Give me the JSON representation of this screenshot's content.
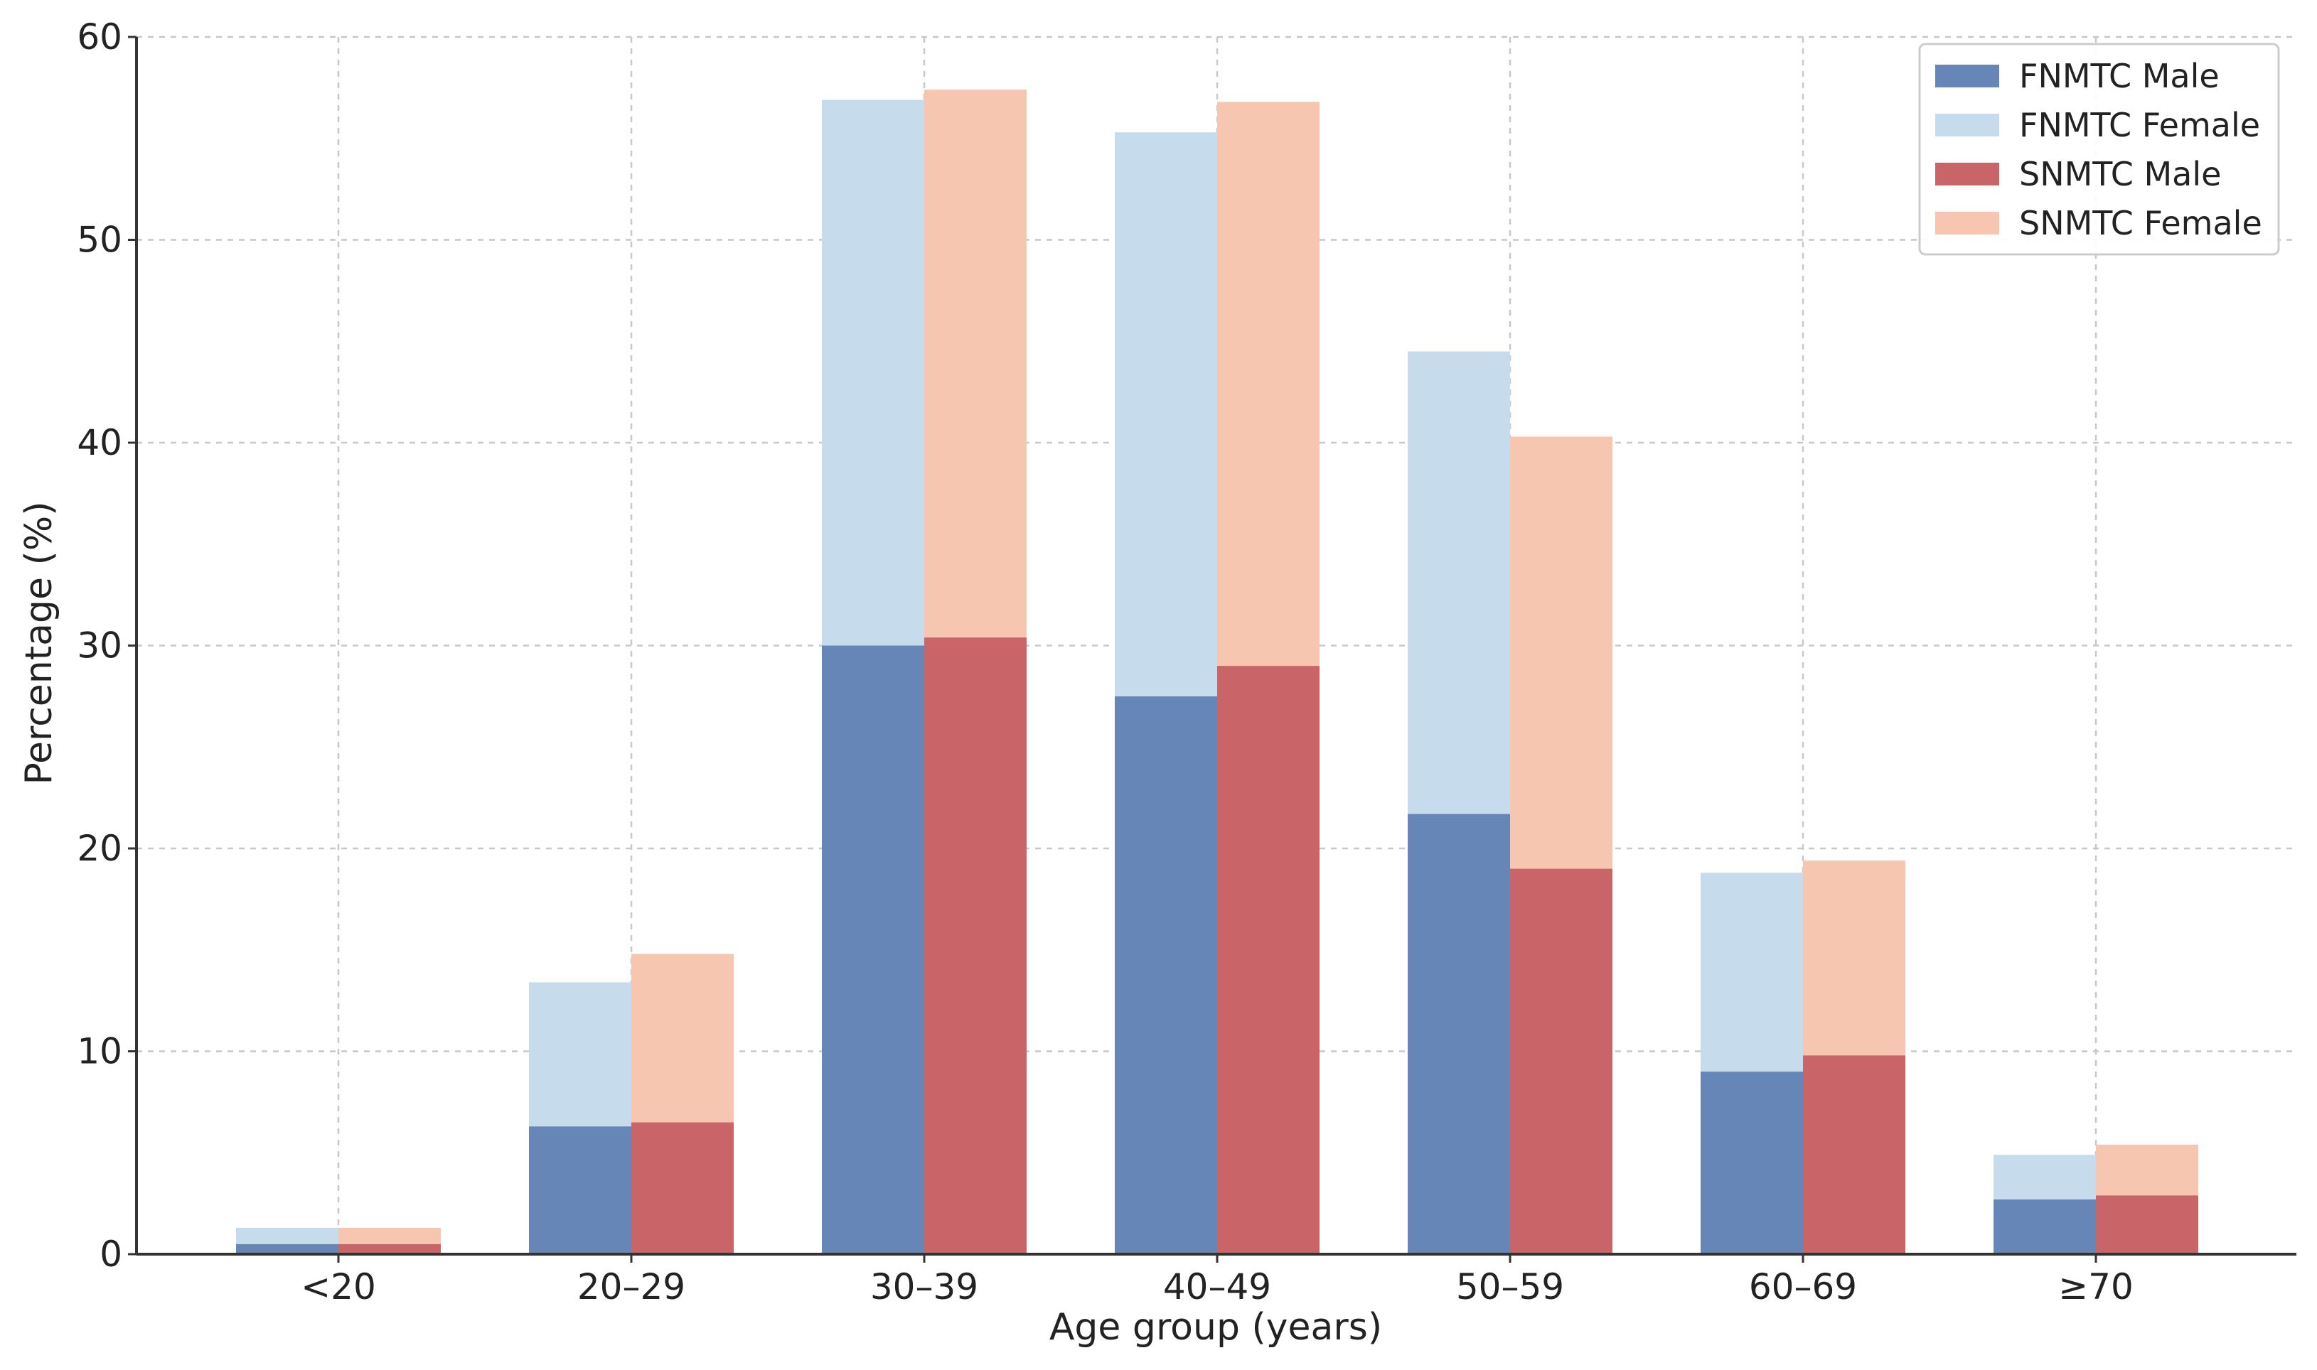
{
  "chart_data": {
    "type": "bar",
    "stacked": true,
    "xlabel": "Age group (years)",
    "ylabel": "Percentage (%)",
    "ylim": [
      0,
      60
    ],
    "yticks": [
      0,
      10,
      20,
      30,
      40,
      50,
      60
    ],
    "grid": true,
    "legend_position": "top-right",
    "categories": [
      "<20",
      "20–29",
      "30–39",
      "40–49",
      "50–59",
      "60–69",
      "≥70"
    ],
    "groups": [
      {
        "name": "FNMTC",
        "stack": [
          {
            "name": "FNMTC Male",
            "color": "#6786b8",
            "values": [
              0.5,
              6.3,
              30.0,
              27.5,
              21.7,
              9.0,
              2.7
            ]
          },
          {
            "name": "FNMTC Female",
            "color": "#c6dced",
            "values": [
              0.8,
              7.1,
              26.9,
              27.8,
              22.8,
              9.8,
              2.2
            ]
          }
        ]
      },
      {
        "name": "SNMTC",
        "stack": [
          {
            "name": "SNMTC Male",
            "color": "#c96468",
            "values": [
              0.5,
              6.5,
              30.4,
              29.0,
              19.0,
              9.8,
              2.9
            ]
          },
          {
            "name": "SNMTC Female",
            "color": "#f6c6b1",
            "values": [
              0.8,
              8.3,
              27.0,
              27.8,
              21.3,
              9.6,
              2.5
            ]
          }
        ]
      }
    ],
    "legend": [
      "FNMTC Male",
      "FNMTC Female",
      "SNMTC Male",
      "SNMTC Female"
    ]
  }
}
